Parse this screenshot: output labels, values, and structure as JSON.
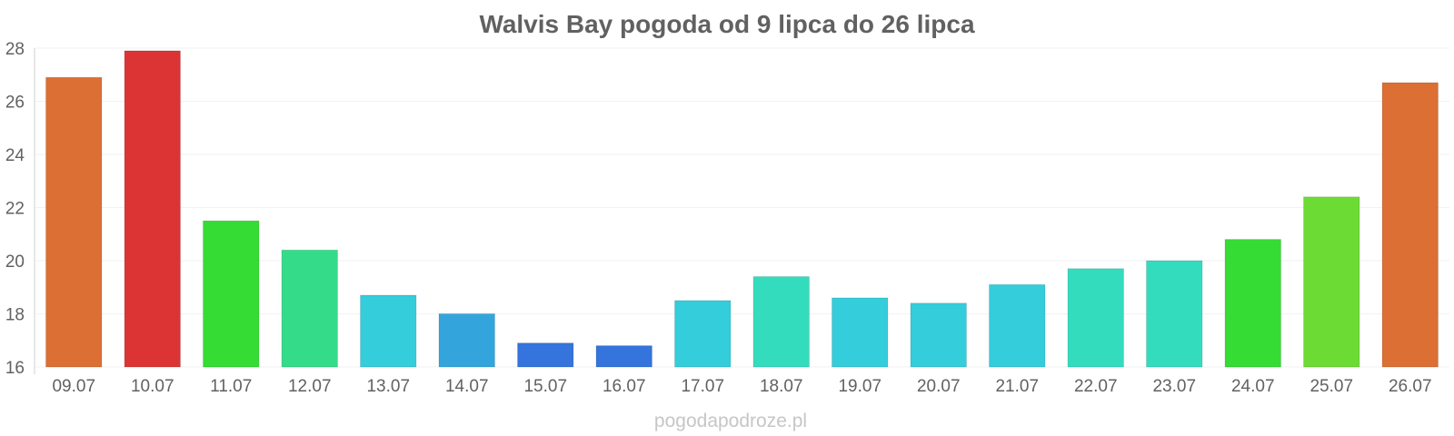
{
  "source_text": "pogodapodroze.pl",
  "chart_data": {
    "type": "bar",
    "title": "Walvis Bay pogoda od 9 lipca do 26 lipca",
    "xlabel": "",
    "ylabel": "",
    "ylim": [
      16,
      28
    ],
    "yticks": [
      16,
      18,
      20,
      22,
      24,
      26,
      28
    ],
    "grid": true,
    "categories": [
      "09.07",
      "10.07",
      "11.07",
      "12.07",
      "13.07",
      "14.07",
      "15.07",
      "16.07",
      "17.07",
      "18.07",
      "19.07",
      "20.07",
      "21.07",
      "22.07",
      "23.07",
      "24.07",
      "25.07",
      "26.07"
    ],
    "values": [
      26.9,
      27.9,
      21.5,
      20.4,
      18.7,
      18.0,
      16.9,
      16.8,
      18.5,
      19.4,
      18.6,
      18.4,
      19.1,
      19.7,
      20.0,
      20.8,
      22.4,
      26.7
    ],
    "colors": [
      "#dc6f33",
      "#dc3434",
      "#34dc34",
      "#34dc8a",
      "#34cddc",
      "#34a5dc",
      "#3474dc",
      "#3474dc",
      "#34cddc",
      "#34dcbe",
      "#34cddc",
      "#34cddc",
      "#34cddc",
      "#34dcbe",
      "#34dcbe",
      "#34dc34",
      "#6cdc34",
      "#dc6f33"
    ]
  }
}
